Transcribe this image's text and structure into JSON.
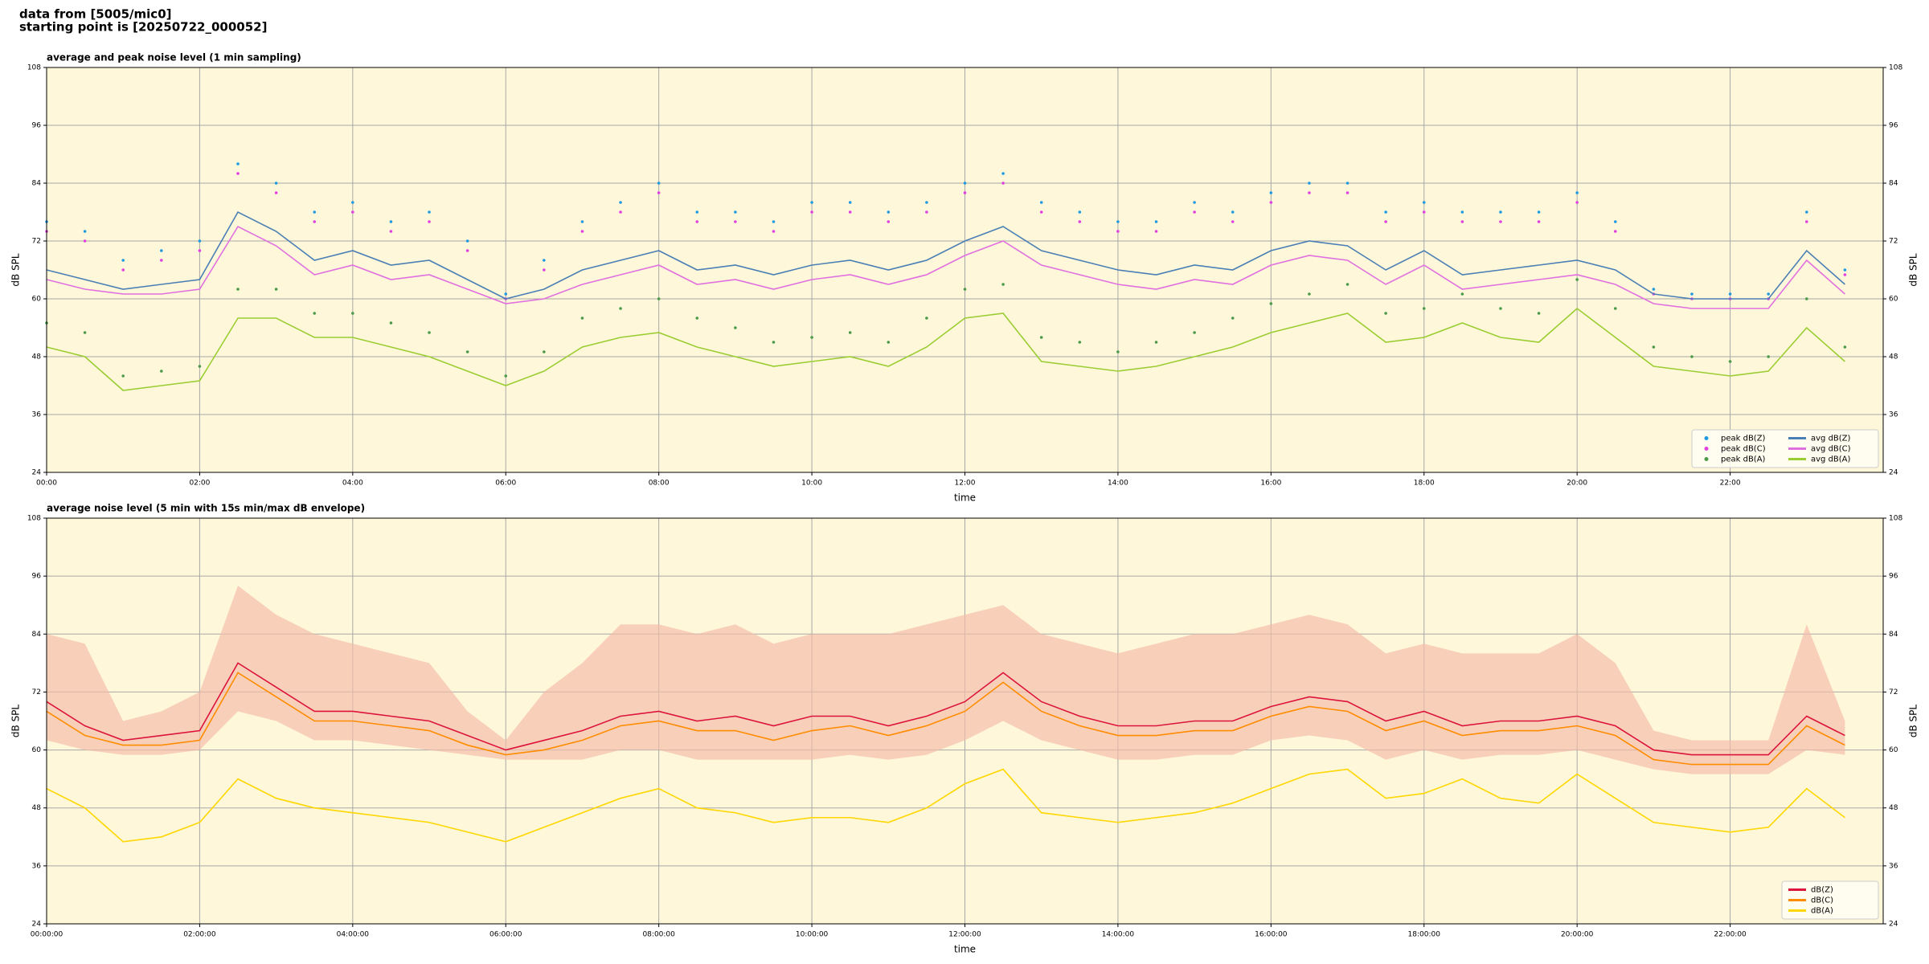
{
  "header": [
    "data from [5005/mic0]",
    "starting point is [20250722_000052]"
  ],
  "chart_data": [
    {
      "type": "line",
      "title": "average and peak noise level (1 min sampling)",
      "xlabel": "time",
      "ylabel": "dB SPL",
      "y2label": "dB SPL",
      "facecolor": "#fff7d9",
      "grid": true,
      "legend": "lower right",
      "legend_columns": 2,
      "xlim": [
        0,
        24
      ],
      "ylim": [
        24,
        108
      ],
      "y2lim": [
        24,
        108
      ],
      "xticks": [
        {
          "value": 0,
          "label": "00:00"
        },
        {
          "value": 2,
          "label": "02:00"
        },
        {
          "value": 4,
          "label": "04:00"
        },
        {
          "value": 6,
          "label": "06:00"
        },
        {
          "value": 8,
          "label": "08:00"
        },
        {
          "value": 10,
          "label": "10:00"
        },
        {
          "value": 12,
          "label": "12:00"
        },
        {
          "value": 14,
          "label": "14:00"
        },
        {
          "value": 16,
          "label": "16:00"
        },
        {
          "value": 18,
          "label": "18:00"
        },
        {
          "value": 20,
          "label": "20:00"
        },
        {
          "value": 22,
          "label": "22:00"
        }
      ],
      "yticks": [
        24,
        36,
        48,
        60,
        72,
        84,
        96,
        108
      ],
      "y2ticks": [
        24,
        36,
        48,
        60,
        72,
        84,
        96,
        108
      ],
      "x": [
        0,
        0.5,
        1,
        1.5,
        2,
        2.5,
        3,
        3.5,
        4,
        4.5,
        5,
        5.5,
        6,
        6.5,
        7,
        7.5,
        8,
        8.5,
        9,
        9.5,
        10,
        10.5,
        11,
        11.5,
        12,
        12.5,
        13,
        13.5,
        14,
        14.5,
        15,
        15.5,
        16,
        16.5,
        17,
        17.5,
        18,
        18.5,
        19,
        19.5,
        20,
        20.5,
        21,
        21.5,
        22,
        22.5,
        23,
        23.5
      ],
      "series": [
        {
          "name": "peak dB(Z)",
          "type": "scatter",
          "color": "#1f9ae0",
          "values": [
            76,
            74,
            68,
            70,
            72,
            88,
            84,
            78,
            80,
            76,
            78,
            72,
            61,
            68,
            76,
            80,
            84,
            78,
            78,
            76,
            80,
            80,
            78,
            80,
            84,
            86,
            80,
            78,
            76,
            76,
            80,
            78,
            82,
            84,
            84,
            78,
            80,
            78,
            78,
            78,
            82,
            76,
            62,
            61,
            61,
            61,
            78,
            66
          ]
        },
        {
          "name": "peak dB(C)",
          "type": "scatter",
          "color": "#e040e0",
          "values": [
            74,
            72,
            66,
            68,
            70,
            86,
            82,
            76,
            78,
            74,
            76,
            70,
            60,
            66,
            74,
            78,
            82,
            76,
            76,
            74,
            78,
            78,
            76,
            78,
            82,
            84,
            78,
            76,
            74,
            74,
            78,
            76,
            80,
            82,
            82,
            76,
            78,
            76,
            76,
            76,
            80,
            74,
            61,
            60,
            60,
            60,
            76,
            65
          ]
        },
        {
          "name": "peak dB(A)",
          "type": "scatter",
          "color": "#4a9a4a",
          "values": [
            55,
            53,
            44,
            45,
            46,
            62,
            62,
            57,
            57,
            55,
            53,
            49,
            44,
            49,
            56,
            58,
            60,
            56,
            54,
            51,
            52,
            53,
            51,
            56,
            62,
            63,
            52,
            51,
            49,
            51,
            53,
            56,
            59,
            61,
            63,
            57,
            58,
            61,
            58,
            57,
            64,
            58,
            50,
            48,
            47,
            48,
            60,
            50
          ]
        },
        {
          "name": "avg dB(Z)",
          "type": "line",
          "color": "#4a7fb5",
          "values": [
            66,
            64,
            62,
            63,
            64,
            78,
            74,
            68,
            70,
            67,
            68,
            64,
            60,
            62,
            66,
            68,
            70,
            66,
            67,
            65,
            67,
            68,
            66,
            68,
            72,
            75,
            70,
            68,
            66,
            65,
            67,
            66,
            70,
            72,
            71,
            66,
            70,
            65,
            66,
            67,
            68,
            66,
            61,
            60,
            60,
            60,
            70,
            63
          ]
        },
        {
          "name": "avg dB(C)",
          "type": "line",
          "color": "#e070e0",
          "values": [
            64,
            62,
            61,
            61,
            62,
            75,
            71,
            65,
            67,
            64,
            65,
            62,
            59,
            60,
            63,
            65,
            67,
            63,
            64,
            62,
            64,
            65,
            63,
            65,
            69,
            72,
            67,
            65,
            63,
            62,
            64,
            63,
            67,
            69,
            68,
            63,
            67,
            62,
            63,
            64,
            65,
            63,
            59,
            58,
            58,
            58,
            68,
            61
          ]
        },
        {
          "name": "avg dB(A)",
          "type": "line",
          "color": "#9acd32",
          "values": [
            50,
            48,
            41,
            42,
            43,
            56,
            56,
            52,
            52,
            50,
            48,
            45,
            42,
            45,
            50,
            52,
            53,
            50,
            48,
            46,
            47,
            48,
            46,
            50,
            56,
            57,
            47,
            46,
            45,
            46,
            48,
            50,
            53,
            55,
            57,
            51,
            52,
            55,
            52,
            51,
            58,
            52,
            46,
            45,
            44,
            45,
            54,
            47
          ]
        }
      ]
    },
    {
      "type": "line",
      "title": "average noise level (5 min with 15s min/max dB envelope)",
      "xlabel": "time",
      "ylabel": "dB SPL",
      "y2label": "dB SPL",
      "facecolor": "#fff7d9",
      "grid": true,
      "legend": "lower right",
      "legend_columns": 1,
      "xlim": [
        0,
        24
      ],
      "ylim": [
        24,
        108
      ],
      "y2lim": [
        24,
        108
      ],
      "xticks": [
        {
          "value": 0,
          "label": "00:00:00"
        },
        {
          "value": 2,
          "label": "02:00:00"
        },
        {
          "value": 4,
          "label": "04:00:00"
        },
        {
          "value": 6,
          "label": "06:00:00"
        },
        {
          "value": 8,
          "label": "08:00:00"
        },
        {
          "value": 10,
          "label": "10:00:00"
        },
        {
          "value": 12,
          "label": "12:00:00"
        },
        {
          "value": 14,
          "label": "14:00:00"
        },
        {
          "value": 16,
          "label": "16:00:00"
        },
        {
          "value": 18,
          "label": "18:00:00"
        },
        {
          "value": 20,
          "label": "20:00:00"
        },
        {
          "value": 22,
          "label": "22:00:00"
        }
      ],
      "yticks": [
        24,
        36,
        48,
        60,
        72,
        84,
        96,
        108
      ],
      "y2ticks": [
        24,
        36,
        48,
        60,
        72,
        84,
        96,
        108
      ],
      "x": [
        0,
        0.5,
        1,
        1.5,
        2,
        2.5,
        3,
        3.5,
        4,
        4.5,
        5,
        5.5,
        6,
        6.5,
        7,
        7.5,
        8,
        8.5,
        9,
        9.5,
        10,
        10.5,
        11,
        11.5,
        12,
        12.5,
        13,
        13.5,
        14,
        14.5,
        15,
        15.5,
        16,
        16.5,
        17,
        17.5,
        18,
        18.5,
        19,
        19.5,
        20,
        20.5,
        21,
        21.5,
        22,
        22.5,
        23,
        23.5
      ],
      "envelope": {
        "color": "#f4bca8",
        "high": [
          84,
          82,
          66,
          68,
          72,
          94,
          88,
          84,
          82,
          80,
          78,
          68,
          62,
          72,
          78,
          86,
          86,
          84,
          86,
          82,
          84,
          84,
          84,
          86,
          88,
          90,
          84,
          82,
          80,
          82,
          84,
          84,
          86,
          88,
          86,
          80,
          82,
          80,
          80,
          80,
          84,
          78,
          64,
          62,
          62,
          62,
          86,
          66
        ],
        "low": [
          62,
          60,
          59,
          59,
          60,
          68,
          66,
          62,
          62,
          61,
          60,
          59,
          58,
          58,
          58,
          60,
          60,
          58,
          58,
          58,
          58,
          59,
          58,
          59,
          62,
          66,
          62,
          60,
          58,
          58,
          59,
          59,
          62,
          63,
          62,
          58,
          60,
          58,
          59,
          59,
          60,
          58,
          56,
          55,
          55,
          55,
          60,
          59
        ]
      },
      "series": [
        {
          "name": "dB(Z)",
          "type": "line",
          "color": "#dc143c",
          "values": [
            70,
            65,
            62,
            63,
            64,
            78,
            73,
            68,
            68,
            67,
            66,
            63,
            60,
            62,
            64,
            67,
            68,
            66,
            67,
            65,
            67,
            67,
            65,
            67,
            70,
            76,
            70,
            67,
            65,
            65,
            66,
            66,
            69,
            71,
            70,
            66,
            68,
            65,
            66,
            66,
            67,
            65,
            60,
            59,
            59,
            59,
            67,
            63
          ]
        },
        {
          "name": "dB(C)",
          "type": "line",
          "color": "#ff8c00",
          "values": [
            68,
            63,
            61,
            61,
            62,
            76,
            71,
            66,
            66,
            65,
            64,
            61,
            59,
            60,
            62,
            65,
            66,
            64,
            64,
            62,
            64,
            65,
            63,
            65,
            68,
            74,
            68,
            65,
            63,
            63,
            64,
            64,
            67,
            69,
            68,
            64,
            66,
            63,
            64,
            64,
            65,
            63,
            58,
            57,
            57,
            57,
            65,
            61
          ]
        },
        {
          "name": "dB(A)",
          "type": "line",
          "color": "#ffd700",
          "values": [
            52,
            48,
            41,
            42,
            45,
            54,
            50,
            48,
            47,
            46,
            45,
            43,
            41,
            44,
            47,
            50,
            52,
            48,
            47,
            45,
            46,
            46,
            45,
            48,
            53,
            56,
            47,
            46,
            45,
            46,
            47,
            49,
            52,
            55,
            56,
            50,
            51,
            54,
            50,
            49,
            55,
            50,
            45,
            44,
            43,
            44,
            52,
            46
          ]
        }
      ]
    }
  ]
}
